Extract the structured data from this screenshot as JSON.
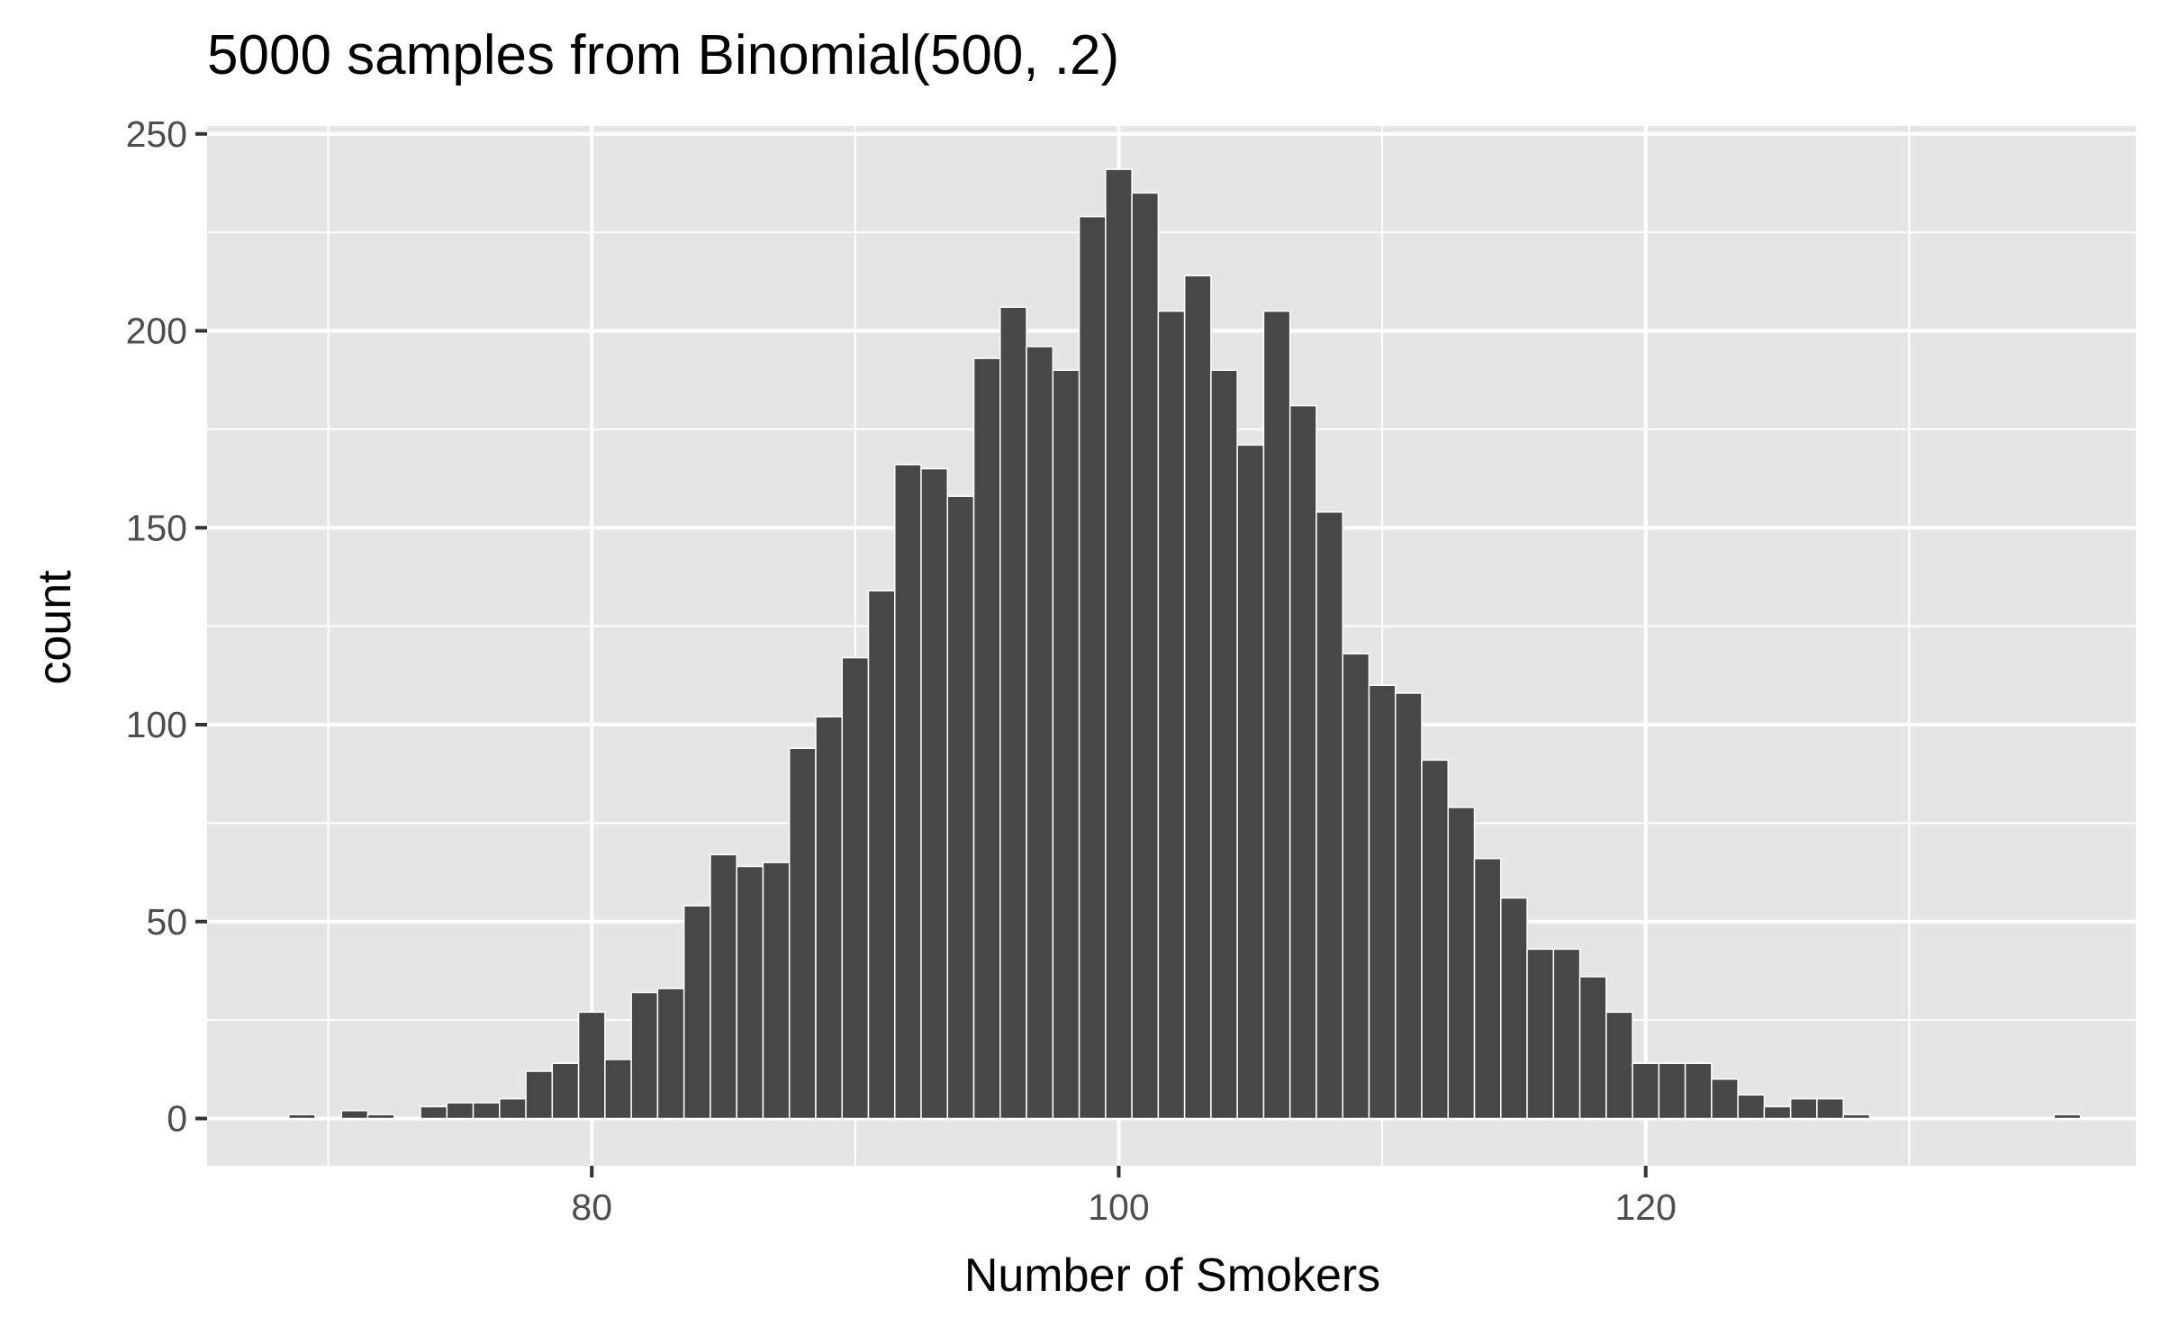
{
  "chart_data": {
    "type": "bar",
    "title": "5000 samples from Binomial(500, .2)",
    "xlabel": "Number of Smokers",
    "ylabel": "count",
    "xlim": [
      65.4,
      138.6
    ],
    "ylim": [
      -12,
      252
    ],
    "x_ticks": [
      80,
      100,
      120
    ],
    "x_tick_labels": [
      "80",
      "100",
      "120"
    ],
    "x_minor_ticks": [
      70,
      90,
      110,
      130
    ],
    "y_ticks": [
      0,
      50,
      100,
      150,
      200,
      250
    ],
    "y_tick_labels": [
      "0",
      "50",
      "100",
      "150",
      "200",
      "250"
    ],
    "y_minor_ticks": [
      25,
      75,
      125,
      175,
      225
    ],
    "grid": true,
    "legend": "none",
    "colors": {
      "panel": "#e5e5e5",
      "grid": "#ffffff",
      "bar": "#474747",
      "bar_outline": "#ffffff"
    },
    "x": [
      69,
      70,
      71,
      72,
      73,
      74,
      75,
      76,
      77,
      78,
      79,
      80,
      81,
      82,
      83,
      84,
      85,
      86,
      87,
      88,
      89,
      90,
      91,
      92,
      93,
      94,
      95,
      96,
      97,
      98,
      99,
      100,
      101,
      102,
      103,
      104,
      105,
      106,
      107,
      108,
      109,
      110,
      111,
      112,
      113,
      114,
      115,
      116,
      117,
      118,
      119,
      120,
      121,
      122,
      123,
      124,
      125,
      126,
      127,
      128,
      129,
      130,
      131,
      132,
      133,
      134,
      135,
      136
    ],
    "values": [
      1,
      0,
      2,
      1,
      0,
      3,
      4,
      4,
      5,
      12,
      14,
      27,
      15,
      32,
      33,
      54,
      67,
      64,
      65,
      94,
      102,
      117,
      134,
      166,
      165,
      158,
      193,
      206,
      196,
      190,
      229,
      241,
      235,
      205,
      214,
      190,
      171,
      205,
      181,
      154,
      118,
      110,
      108,
      91,
      79,
      66,
      56,
      43,
      43,
      36,
      27,
      14,
      14,
      14,
      10,
      6,
      3,
      5,
      5,
      1,
      0,
      0,
      0,
      0,
      0,
      0,
      0,
      1
    ]
  }
}
